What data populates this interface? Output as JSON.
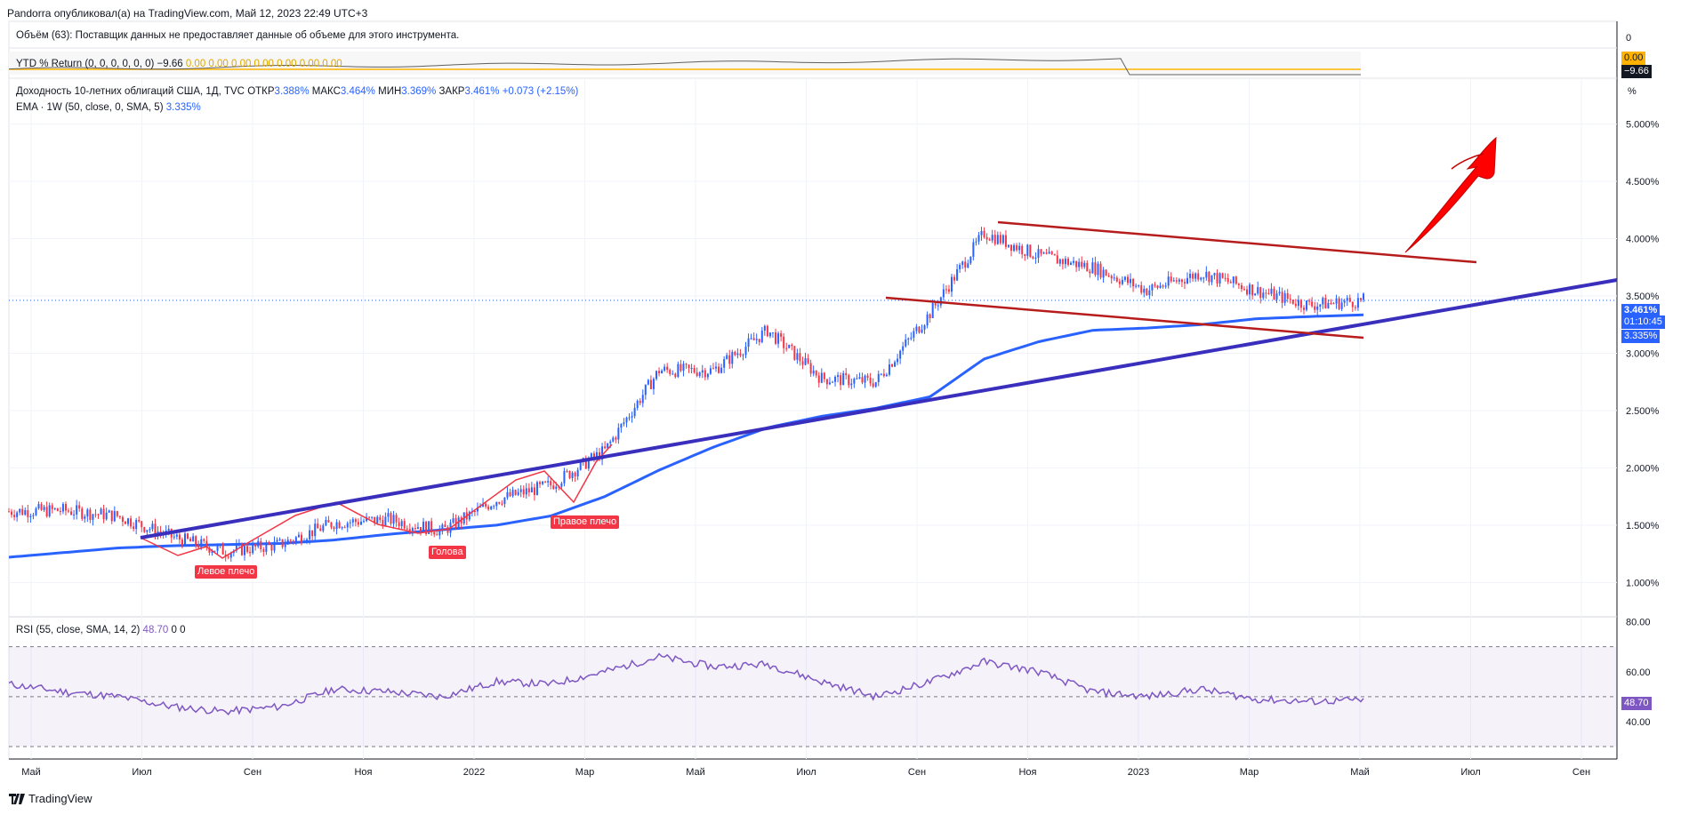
{
  "header": {
    "published": "Pandorra опубликовал(а) на TradingView.com, Май 12, 2023 22:49 UTC+3"
  },
  "volume_pane": {
    "text": "Объём (63): Поставщик данных не предоставляет данные об объеме для этого инструмента.",
    "axis_top": "0"
  },
  "ytd_pane": {
    "label": "YTD % Return (0, 0, 0, 0, 0, 0)",
    "value_main": "−9.66",
    "values_zero": "0.00  0.00  0.00  0.00  0.00  0.00  0.00",
    "tag_zero": "0.00",
    "tag_main": "−9.66",
    "colors": {
      "line": "#606060",
      "zero": "#ffb300"
    }
  },
  "main_pane": {
    "title": "Доходность 10-летних облигаций США, 1Д, TVC",
    "ohlc": {
      "o_label": "ОТКР",
      "o": "3.388%",
      "h_label": "МАКС",
      "h": "3.464%",
      "l_label": "МИН",
      "l": "3.369%",
      "c_label": "ЗАКР",
      "c": "3.461%",
      "change": "+0.073 (+2.15%)"
    },
    "ema": {
      "label": "EMA · 1W (50, close, 0, SMA, 5)",
      "value": "3.335%"
    },
    "price_tag": "3.461%",
    "countdown": "01:10:45",
    "ema_tag": "3.335%",
    "axis_unit": "%",
    "annotations": {
      "left_shoulder": "Левое плечо",
      "head": "Голова",
      "right_shoulder": "Правое плечо"
    },
    "colors": {
      "up": "#2962ff",
      "down": "#f23645",
      "ema": "#2962ff",
      "trend": "#4a2fbd",
      "channel": "#b71c1c",
      "arrow": "#ff0000"
    }
  },
  "rsi_pane": {
    "label": "RSI (55, close, SMA, 14, 2)",
    "value": "48.70",
    "extra": "0  0",
    "tag": "48.70",
    "color": "#7e57c2"
  },
  "time_axis": [
    "Май",
    "Июл",
    "Сен",
    "Ноя",
    "2022",
    "Мар",
    "Май",
    "Июл",
    "Сен",
    "Ноя",
    "2023",
    "Мар",
    "Май",
    "Июл",
    "Сен"
  ],
  "footer": {
    "brand": "TradingView"
  },
  "chart_data": [
    {
      "type": "line",
      "title": "Доходность 10-летних облигаций США, 1Д, TVC",
      "ylabel": "%",
      "ylim": [
        0.7,
        5.4
      ],
      "y_ticks": [
        "5.000%",
        "4.500%",
        "4.000%",
        "3.500%",
        "3.000%",
        "2.500%",
        "2.000%",
        "1.500%",
        "1.000%"
      ],
      "y_tick_values": [
        5.0,
        4.5,
        4.0,
        3.5,
        3.0,
        2.5,
        2.0,
        1.5,
        1.0
      ],
      "x_dates": [
        "2021-04",
        "2021-05",
        "2021-06",
        "2021-07",
        "2021-08",
        "2021-09",
        "2021-10",
        "2021-11",
        "2021-12",
        "2022-01",
        "2022-02",
        "2022-03",
        "2022-04",
        "2022-05",
        "2022-06",
        "2022-07",
        "2022-08",
        "2022-09",
        "2022-10",
        "2022-11",
        "2022-12",
        "2023-01",
        "2023-02",
        "2023-03",
        "2023-04",
        "2023-05"
      ],
      "series": [
        {
          "name": "Доходность 10-летних облигаций США",
          "values": [
            1.62,
            1.63,
            1.58,
            1.4,
            1.27,
            1.33,
            1.52,
            1.55,
            1.45,
            1.72,
            1.85,
            2.15,
            2.85,
            2.85,
            3.2,
            2.78,
            2.75,
            3.35,
            4.05,
            3.85,
            3.75,
            3.55,
            3.7,
            3.55,
            3.42,
            3.46
          ]
        },
        {
          "name": "EMA · 1W (50, close, 0, SMA, 5)",
          "values": [
            1.22,
            1.26,
            1.3,
            1.32,
            1.33,
            1.34,
            1.37,
            1.42,
            1.46,
            1.5,
            1.58,
            1.75,
            1.98,
            2.18,
            2.35,
            2.45,
            2.52,
            2.62,
            2.95,
            3.1,
            3.2,
            3.22,
            3.25,
            3.3,
            3.32,
            3.335
          ]
        }
      ]
    },
    {
      "type": "line",
      "title": "RSI (55, close, SMA, 14, 2)",
      "ylim": [
        25,
        82
      ],
      "y_ticks": [
        "80.00",
        "60.00",
        "40.00"
      ],
      "y_tick_values": [
        80,
        60,
        40
      ],
      "bands": [
        30,
        50,
        70
      ],
      "series": [
        {
          "name": "RSI",
          "values": [
            55,
            52,
            50,
            46,
            44,
            46,
            53,
            52,
            50,
            56,
            55,
            60,
            66,
            62,
            63,
            56,
            50,
            56,
            64,
            60,
            52,
            50,
            53,
            49,
            48,
            48.7
          ]
        }
      ]
    }
  ]
}
